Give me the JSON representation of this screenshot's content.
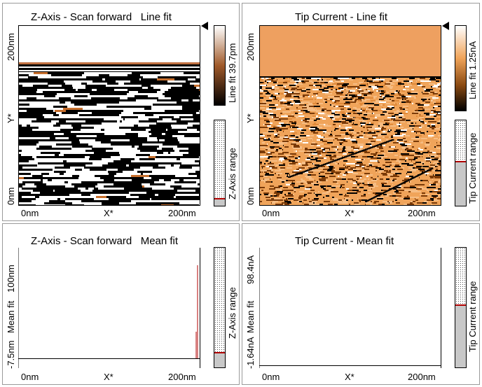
{
  "panels": {
    "z_line": {
      "title": "Z-Axis - Scan forward   Line fit",
      "y_top": "200nm",
      "y_mid": "Y*",
      "y_bottom": "0nm",
      "x_left": "0nm",
      "x_mid": "X*",
      "x_right": "200nm",
      "colorbar_label": "Line fit 39.7pm",
      "range_label": "Z-Axis range",
      "range_fill": 0.08
    },
    "tip_line": {
      "title": "Tip Current - Line fit",
      "y_top": "200nm",
      "y_mid": "Y*",
      "y_bottom": "0nm",
      "x_left": "0nm",
      "x_mid": "X*",
      "x_right": "200nm",
      "colorbar_label": "Line fit 1.25nA",
      "range_label": "Tip Current range",
      "range_fill": 0.52
    },
    "z_mean": {
      "title": "Z-Axis - Scan forward   Mean fit",
      "y_top": "100nm",
      "y_mid": "Mean fit",
      "y_bottom": "-7.5nm",
      "x_left": "0nm",
      "x_mid": "X*",
      "x_right": "200nm",
      "range_label": "Z-Axis range",
      "range_fill": 0.12
    },
    "tip_mean": {
      "title": "Tip Current - Mean fit",
      "y_top": "98.4nA",
      "y_mid": "Mean fit",
      "y_bottom": "-1.64nA",
      "x_left": "0nm",
      "x_mid": "X*",
      "x_right": "200nm",
      "range_label": "Tip Current range",
      "range_fill": 0.52
    }
  },
  "colors": {
    "tip_light": "#f0a45a",
    "tip_dark": "#1a0c00",
    "range_marker": "#b00000",
    "range_gray": "#c8c8c8"
  }
}
